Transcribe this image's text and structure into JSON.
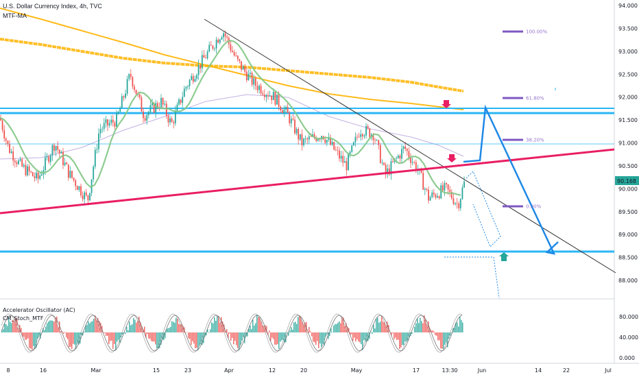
{
  "header": {
    "title": "U.S. Dollar Currency Index, 4h, TVC",
    "indicator": "MTF-MA"
  },
  "lower_pane": {
    "title1": "Accelerator Oscillator (AC)",
    "title2": "CM_Stoch_MTF",
    "ticks": [
      "80.000",
      "40.000",
      "0.000"
    ]
  },
  "colors": {
    "up": "#26a69a",
    "down": "#ef5350",
    "resistance": "#29b6f6",
    "trend": "#e91e63",
    "projection": "#1e88e5",
    "ma_slow": "#ffb300",
    "ma_fast": "#81c784",
    "ma_mid": "#b39ddb",
    "fib": "#7e57c2",
    "arrow_down": "#e91e63",
    "arrow_up": "#26a69a"
  },
  "chart_data": {
    "type": "candlestick",
    "title": "U.S. Dollar Currency Index, 4h, TVC",
    "timeframe": "4h",
    "y_range": [
      87.8,
      94.0
    ],
    "y_ticks": [
      "94.000",
      "93.500",
      "93.000",
      "92.500",
      "92.000",
      "91.500",
      "91.000",
      "90.500",
      "90.000",
      "89.500",
      "89.000",
      "88.500",
      "88.000"
    ],
    "x_ticks": [
      "8",
      "16",
      "Mar",
      "15",
      "23",
      "Apr",
      "12",
      "20",
      "May",
      "17",
      "13:30",
      "Jun",
      "14",
      "22",
      "Jul"
    ],
    "last_price": "90.168",
    "horizontal_levels": [
      91.75,
      91.68,
      88.62
    ],
    "fib_levels": [
      {
        "label": "100.00%",
        "price": 93.45
      },
      {
        "label": "61.80%",
        "price": 91.95
      },
      {
        "label": "38.20%",
        "price": 91.05
      },
      {
        "label": "0.00%",
        "price": 89.6
      }
    ],
    "path_points": [
      [
        90.02,
        "2021-02-01"
      ],
      [
        91.55,
        "2021-02-05"
      ],
      [
        90.6,
        "2021-02-10"
      ],
      [
        90.3,
        "2021-02-17"
      ],
      [
        90.9,
        "2021-02-24"
      ],
      [
        90.1,
        "2021-02-26"
      ],
      [
        91.5,
        "2021-03-04"
      ],
      [
        92.35,
        "2021-03-08"
      ],
      [
        91.6,
        "2021-03-11"
      ],
      [
        91.9,
        "2021-03-16"
      ],
      [
        91.45,
        "2021-03-18"
      ],
      [
        92.1,
        "2021-03-23"
      ],
      [
        92.75,
        "2021-03-29"
      ],
      [
        93.3,
        "2021-03-31"
      ],
      [
        92.6,
        "2021-04-05"
      ],
      [
        92.1,
        "2021-04-09"
      ],
      [
        91.7,
        "2021-04-14"
      ],
      [
        91.6,
        "2021-04-16"
      ],
      [
        91.1,
        "2021-04-20"
      ],
      [
        90.9,
        "2021-04-23"
      ],
      [
        91.25,
        "2021-04-28"
      ],
      [
        90.6,
        "2021-04-29"
      ],
      [
        91.2,
        "2021-05-04"
      ],
      [
        91.3,
        "2021-05-05"
      ],
      [
        90.4,
        "2021-05-10"
      ],
      [
        90.55,
        "2021-05-13"
      ],
      [
        90.25,
        "2021-05-17"
      ],
      [
        90.0,
        "2021-05-21"
      ],
      [
        89.7,
        "2021-05-25"
      ],
      [
        89.9,
        "2021-05-26"
      ],
      [
        90.17,
        "2021-05-28"
      ]
    ]
  }
}
